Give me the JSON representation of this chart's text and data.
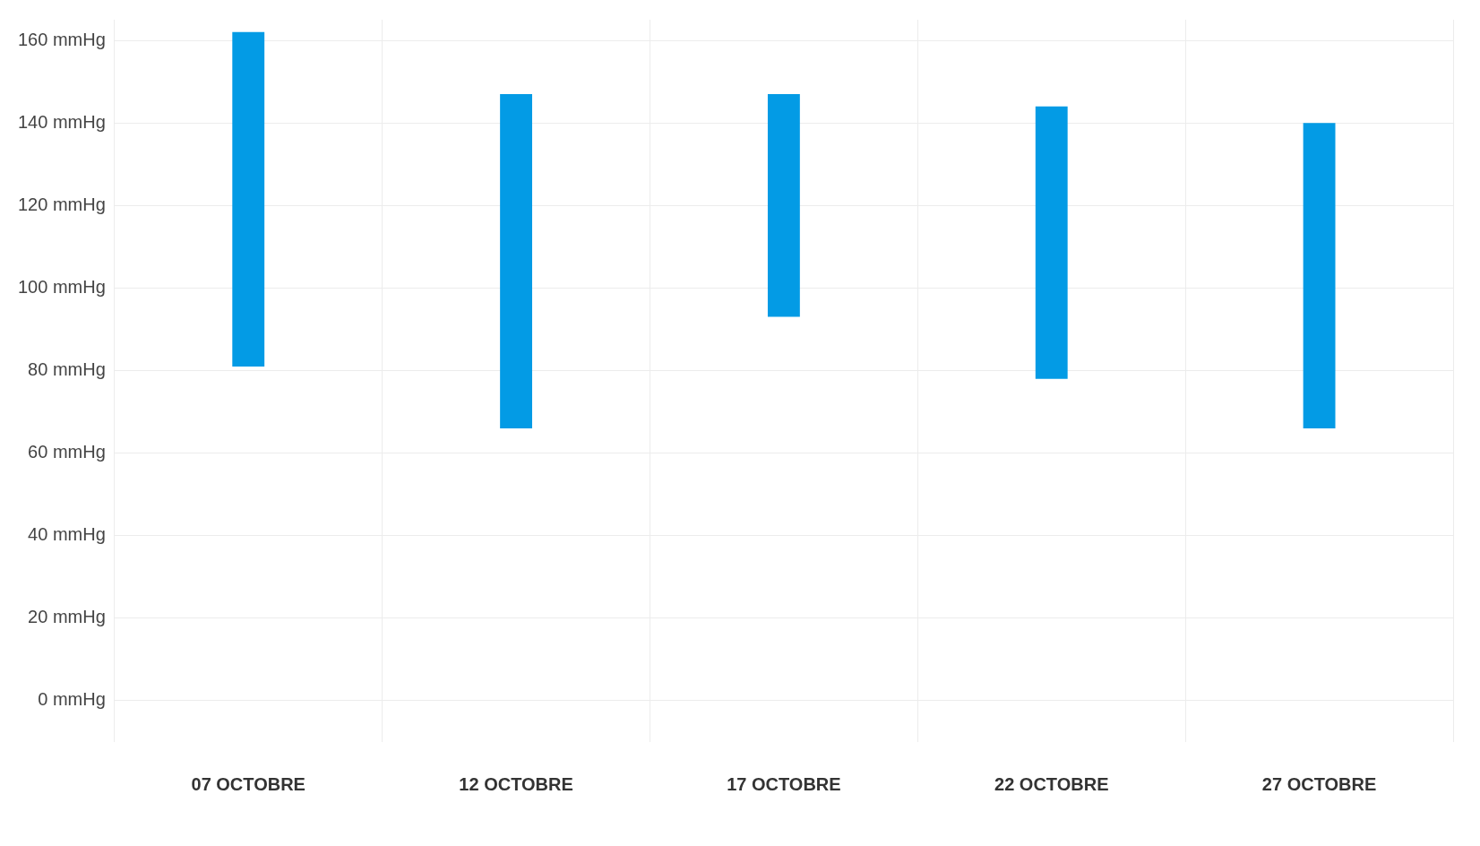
{
  "chart_data": {
    "type": "bar",
    "categories": [
      "07 OCTOBRE",
      "12 OCTOBRE",
      "17 OCTOBRE",
      "22 OCTOBRE",
      "27 OCTOBRE"
    ],
    "base": [
      81,
      66,
      93,
      78,
      66
    ],
    "values": [
      81,
      81,
      54,
      66,
      74
    ],
    "color": "#039be5",
    "ylim": [
      -10,
      165
    ],
    "yticks": [
      {
        "value": 0,
        "label": "0 mmHg"
      },
      {
        "value": 20,
        "label": "20 mmHg"
      },
      {
        "value": 40,
        "label": "40 mmHg"
      },
      {
        "value": 60,
        "label": "60 mmHg"
      },
      {
        "value": 80,
        "label": "80 mmHg"
      },
      {
        "value": 100,
        "label": "100 mmHg"
      },
      {
        "value": 120,
        "label": "120 mmHg"
      },
      {
        "value": 140,
        "label": "140 mmHg"
      },
      {
        "value": 160,
        "label": "160 mmHg"
      }
    ],
    "grid": true
  }
}
